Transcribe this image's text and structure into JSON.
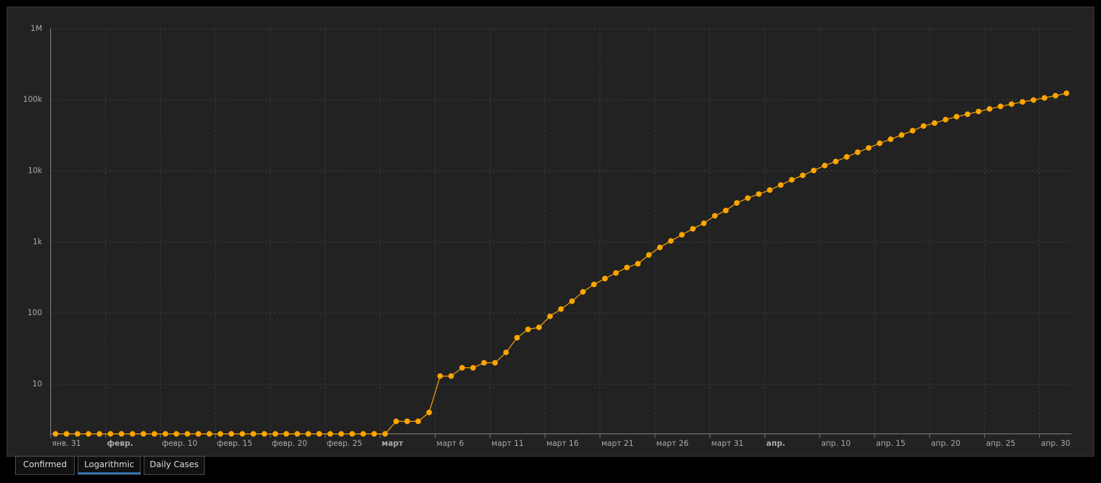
{
  "chart_data": {
    "type": "line",
    "log_scale": true,
    "grid": true,
    "categories": [
      "янв. 31",
      null,
      null,
      null,
      null,
      "февр.",
      null,
      null,
      null,
      null,
      "февр. 10",
      null,
      null,
      null,
      null,
      "февр. 15",
      null,
      null,
      null,
      null,
      "февр. 20",
      null,
      null,
      null,
      null,
      "февр. 25",
      null,
      null,
      null,
      null,
      "март",
      null,
      null,
      null,
      null,
      "март 6",
      null,
      null,
      null,
      null,
      "март 11",
      null,
      null,
      null,
      null,
      "март 16",
      null,
      null,
      null,
      null,
      "март 21",
      null,
      null,
      null,
      null,
      "март 26",
      null,
      null,
      null,
      null,
      "март 31",
      null,
      null,
      null,
      null,
      "апр.",
      null,
      null,
      null,
      null,
      "апр. 10",
      null,
      null,
      null,
      null,
      "апр. 15",
      null,
      null,
      null,
      null,
      "апр. 20",
      null,
      null,
      null,
      null,
      "апр. 25",
      null,
      null,
      null,
      null,
      "апр. 30",
      null,
      null
    ],
    "series": [
      {
        "color": "#ffa500",
        "values": [
          2,
          2,
          2,
          2,
          2,
          2,
          2,
          2,
          2,
          2,
          2,
          2,
          2,
          2,
          2,
          2,
          2,
          2,
          2,
          2,
          2,
          2,
          2,
          2,
          2,
          2,
          2,
          2,
          2,
          2,
          2,
          3,
          3,
          3,
          4,
          13,
          13,
          17,
          17,
          20,
          20,
          28,
          45,
          59,
          63,
          90,
          114,
          147,
          199,
          253,
          306,
          367,
          438,
          495,
          658,
          840,
          1036,
          1264,
          1534,
          1836,
          2337,
          2777,
          3548,
          4149,
          4731,
          5389,
          6343,
          7497,
          8672,
          10131,
          11917,
          13584,
          15770,
          18328,
          21102,
          24490,
          27938,
          32008,
          36793,
          42853,
          47121,
          52763,
          57999,
          62773,
          68622,
          74588,
          80949,
          87147,
          93558,
          99399,
          106498,
          114431,
          124054
        ]
      }
    ],
    "ylim": [
      2,
      1000000
    ],
    "yticks": [
      10,
      100,
      {
        "value": 1000,
        "label": "1k"
      },
      {
        "value": 10000,
        "label": "10k"
      },
      {
        "value": 100000,
        "label": "100k"
      },
      {
        "value": 1000000,
        "label": "1M"
      }
    ]
  },
  "tabs": [
    "Confirmed",
    "Logarithmic",
    "Daily Cases"
  ],
  "active_tab": 1
}
